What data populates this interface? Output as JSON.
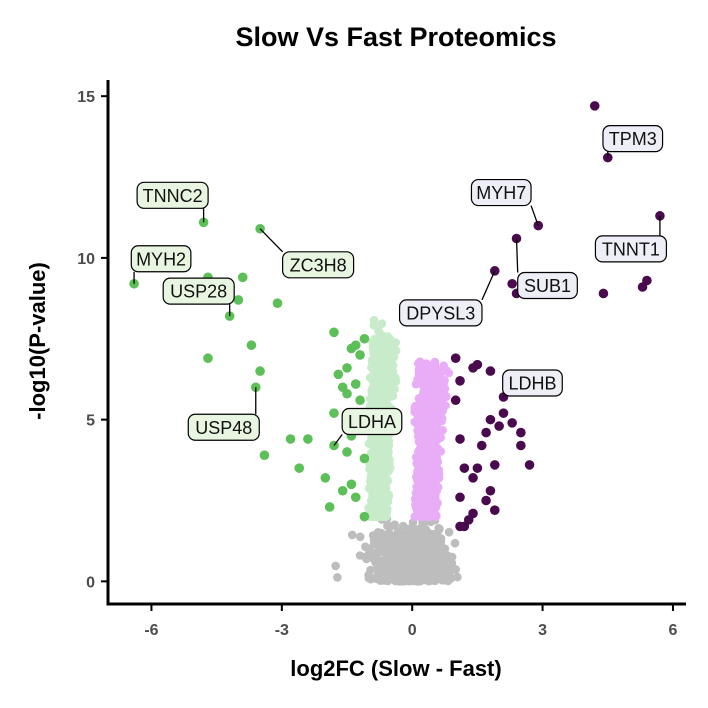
{
  "chart_data": {
    "type": "scatter",
    "title": "Slow Vs Fast Proteomics",
    "xlabel": "log2FC (Slow - Fast)",
    "ylabel": "-log10(P-value)",
    "xlim": [
      -7.0,
      6.3
    ],
    "ylim": [
      -0.7,
      15.5
    ],
    "xticks": [
      -6,
      -3,
      0,
      3,
      6
    ],
    "yticks": [
      0,
      5,
      10,
      15
    ],
    "grid": false,
    "legend": "none",
    "colors": {
      "slow_sig": "#5cbf58",
      "slow_nonsig": "#c8ebc9",
      "fast_sig": "#4a0a4e",
      "fast_nonsig": "#e8adf6",
      "not_significant": "#bdbdbd",
      "label_slow_fill": "#e8f5e0",
      "label_fast_fill": "#eeeef7"
    },
    "labels": [
      {
        "text": "TNNC2",
        "x": -4.8,
        "y": 11.1,
        "group": "slow"
      },
      {
        "text": "MYH2",
        "x": -6.4,
        "y": 9.2,
        "group": "slow"
      },
      {
        "text": "USP28",
        "x": -4.2,
        "y": 8.2,
        "group": "slow"
      },
      {
        "text": "ZC3H8",
        "x": -3.5,
        "y": 10.9,
        "group": "slow"
      },
      {
        "text": "USP48",
        "x": -3.6,
        "y": 6.0,
        "group": "slow"
      },
      {
        "text": "LDHA",
        "x": -1.8,
        "y": 4.2,
        "group": "slow"
      },
      {
        "text": "TPM3",
        "x": 4.5,
        "y": 13.1,
        "group": "fast"
      },
      {
        "text": "MYH7",
        "x": 2.9,
        "y": 11.0,
        "group": "fast"
      },
      {
        "text": "TNNT1",
        "x": 5.7,
        "y": 11.3,
        "group": "fast"
      },
      {
        "text": "SUB1",
        "x": 2.4,
        "y": 10.6,
        "group": "fast"
      },
      {
        "text": "DPYSL3",
        "x": 1.9,
        "y": 9.6,
        "group": "fast"
      },
      {
        "text": "LDHB",
        "x": 2.1,
        "y": 5.7,
        "group": "fast"
      }
    ],
    "points_slow_sig": [
      [
        -4.8,
        11.1
      ],
      [
        -6.4,
        9.2
      ],
      [
        -4.2,
        8.2
      ],
      [
        -3.5,
        10.9
      ],
      [
        -3.6,
        6.0
      ],
      [
        -1.8,
        4.2
      ],
      [
        -4.7,
        9.4
      ],
      [
        -5.0,
        8.7
      ],
      [
        -4.4,
        9.0
      ],
      [
        -4.0,
        8.7
      ],
      [
        -3.9,
        9.4
      ],
      [
        -3.1,
        8.6
      ],
      [
        -4.7,
        6.9
      ],
      [
        -3.7,
        7.3
      ],
      [
        -3.5,
        6.5
      ],
      [
        -2.8,
        4.4
      ],
      [
        -2.4,
        4.4
      ],
      [
        -2.6,
        3.5
      ],
      [
        -3.4,
        3.9
      ],
      [
        -2.0,
        3.2
      ],
      [
        -1.9,
        2.3
      ],
      [
        -1.6,
        2.8
      ],
      [
        -1.8,
        5.2
      ],
      [
        -1.5,
        5.8
      ],
      [
        -1.3,
        6.1
      ],
      [
        -1.4,
        7.2
      ],
      [
        -1.8,
        7.7
      ],
      [
        -1.1,
        7.5
      ],
      [
        -1.2,
        7.0
      ],
      [
        -1.4,
        4.5
      ],
      [
        -1.4,
        3.0
      ],
      [
        -1.1,
        3.8
      ],
      [
        -1.5,
        6.6
      ],
      [
        -1.7,
        6.4
      ],
      [
        -1.2,
        4.9
      ],
      [
        -1.2,
        5.6
      ],
      [
        -1.5,
        4.0
      ],
      [
        -1.3,
        2.6
      ],
      [
        -1.6,
        6.0
      ],
      [
        -1.1,
        2.0
      ],
      [
        -1.3,
        7.3
      ]
    ],
    "points_fast_sig": [
      [
        4.5,
        13.1
      ],
      [
        2.9,
        11.0
      ],
      [
        5.7,
        11.3
      ],
      [
        2.4,
        10.6
      ],
      [
        1.9,
        9.6
      ],
      [
        2.1,
        5.7
      ],
      [
        4.2,
        14.7
      ],
      [
        2.3,
        9.2
      ],
      [
        2.4,
        8.9
      ],
      [
        4.4,
        8.9
      ],
      [
        5.4,
        9.3
      ],
      [
        5.3,
        9.1
      ],
      [
        1.0,
        6.9
      ],
      [
        1.4,
        6.6
      ],
      [
        1.5,
        6.7
      ],
      [
        1.8,
        6.5
      ],
      [
        1.1,
        6.2
      ],
      [
        1.0,
        5.6
      ],
      [
        1.1,
        4.4
      ],
      [
        1.2,
        3.5
      ],
      [
        1.4,
        3.2
      ],
      [
        1.4,
        2.1
      ],
      [
        1.1,
        2.6
      ],
      [
        1.3,
        1.9
      ],
      [
        1.2,
        1.7
      ],
      [
        1.1,
        1.7
      ],
      [
        1.7,
        2.5
      ],
      [
        1.9,
        2.2
      ],
      [
        1.8,
        2.8
      ],
      [
        1.9,
        3.6
      ],
      [
        1.5,
        3.5
      ],
      [
        2.0,
        4.8
      ],
      [
        2.1,
        5.2
      ],
      [
        1.8,
        5.0
      ],
      [
        2.5,
        4.2
      ],
      [
        2.5,
        4.6
      ],
      [
        2.7,
        3.6
      ],
      [
        2.3,
        4.9
      ],
      [
        1.7,
        4.6
      ],
      [
        1.6,
        4.2
      ]
    ]
  }
}
